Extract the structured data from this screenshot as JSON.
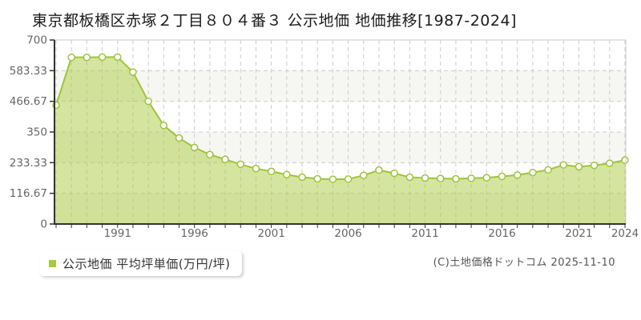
{
  "title": "東京都板橋区赤塚２丁目８０４番３ 公示地価 地価推移[1987-2024]",
  "legend": {
    "marker_color": "#a3ce39",
    "label": "公示地価 平均坪単価(万円/坪)"
  },
  "copyright": "(C)土地価格ドットコム 2025-11-10",
  "chart_data": {
    "type": "area",
    "title": "東京都板橋区赤塚２丁目８０４番３ 公示地価 地価推移[1987-2024]",
    "series_name": "公示地価 平均坪単価",
    "ylabel": "万円/坪",
    "x": [
      1987,
      1988,
      1989,
      1990,
      1991,
      1992,
      1993,
      1994,
      1995,
      1996,
      1997,
      1998,
      1999,
      2000,
      2001,
      2002,
      2003,
      2004,
      2005,
      2006,
      2007,
      2008,
      2009,
      2010,
      2011,
      2012,
      2013,
      2014,
      2015,
      2016,
      2017,
      2018,
      2019,
      2020,
      2021,
      2022,
      2023,
      2024
    ],
    "values": [
      452,
      634,
      634,
      635,
      635,
      578,
      467,
      375,
      327,
      291,
      264,
      246,
      227,
      211,
      200,
      188,
      178,
      172,
      170,
      171,
      185,
      205,
      193,
      178,
      175,
      173,
      172,
      174,
      176,
      181,
      186,
      196,
      206,
      225,
      218,
      223,
      231,
      243
    ],
    "ylim": [
      0,
      700
    ],
    "yticks": [
      0,
      116.67,
      233.33,
      350,
      466.67,
      583.33,
      700
    ],
    "ytick_labels": [
      "0",
      "116.67",
      "233.33",
      "350",
      "466.67",
      "583.33",
      "700"
    ],
    "xtick_years": [
      1991,
      1996,
      2001,
      2006,
      2011,
      2016,
      2021,
      2024
    ],
    "grid": "dashed",
    "legend_position": "bottom-left",
    "colors": {
      "area_fill": "#abcb41",
      "area_fill_opacity": 0.5,
      "line": "#9ec43a",
      "point_fill": "#ffffff",
      "gridline": "#cccccc",
      "band_alt": "#f6f6f3",
      "band_main": "#ffffff",
      "axis": "#333333",
      "tick_label": "#666666"
    }
  }
}
